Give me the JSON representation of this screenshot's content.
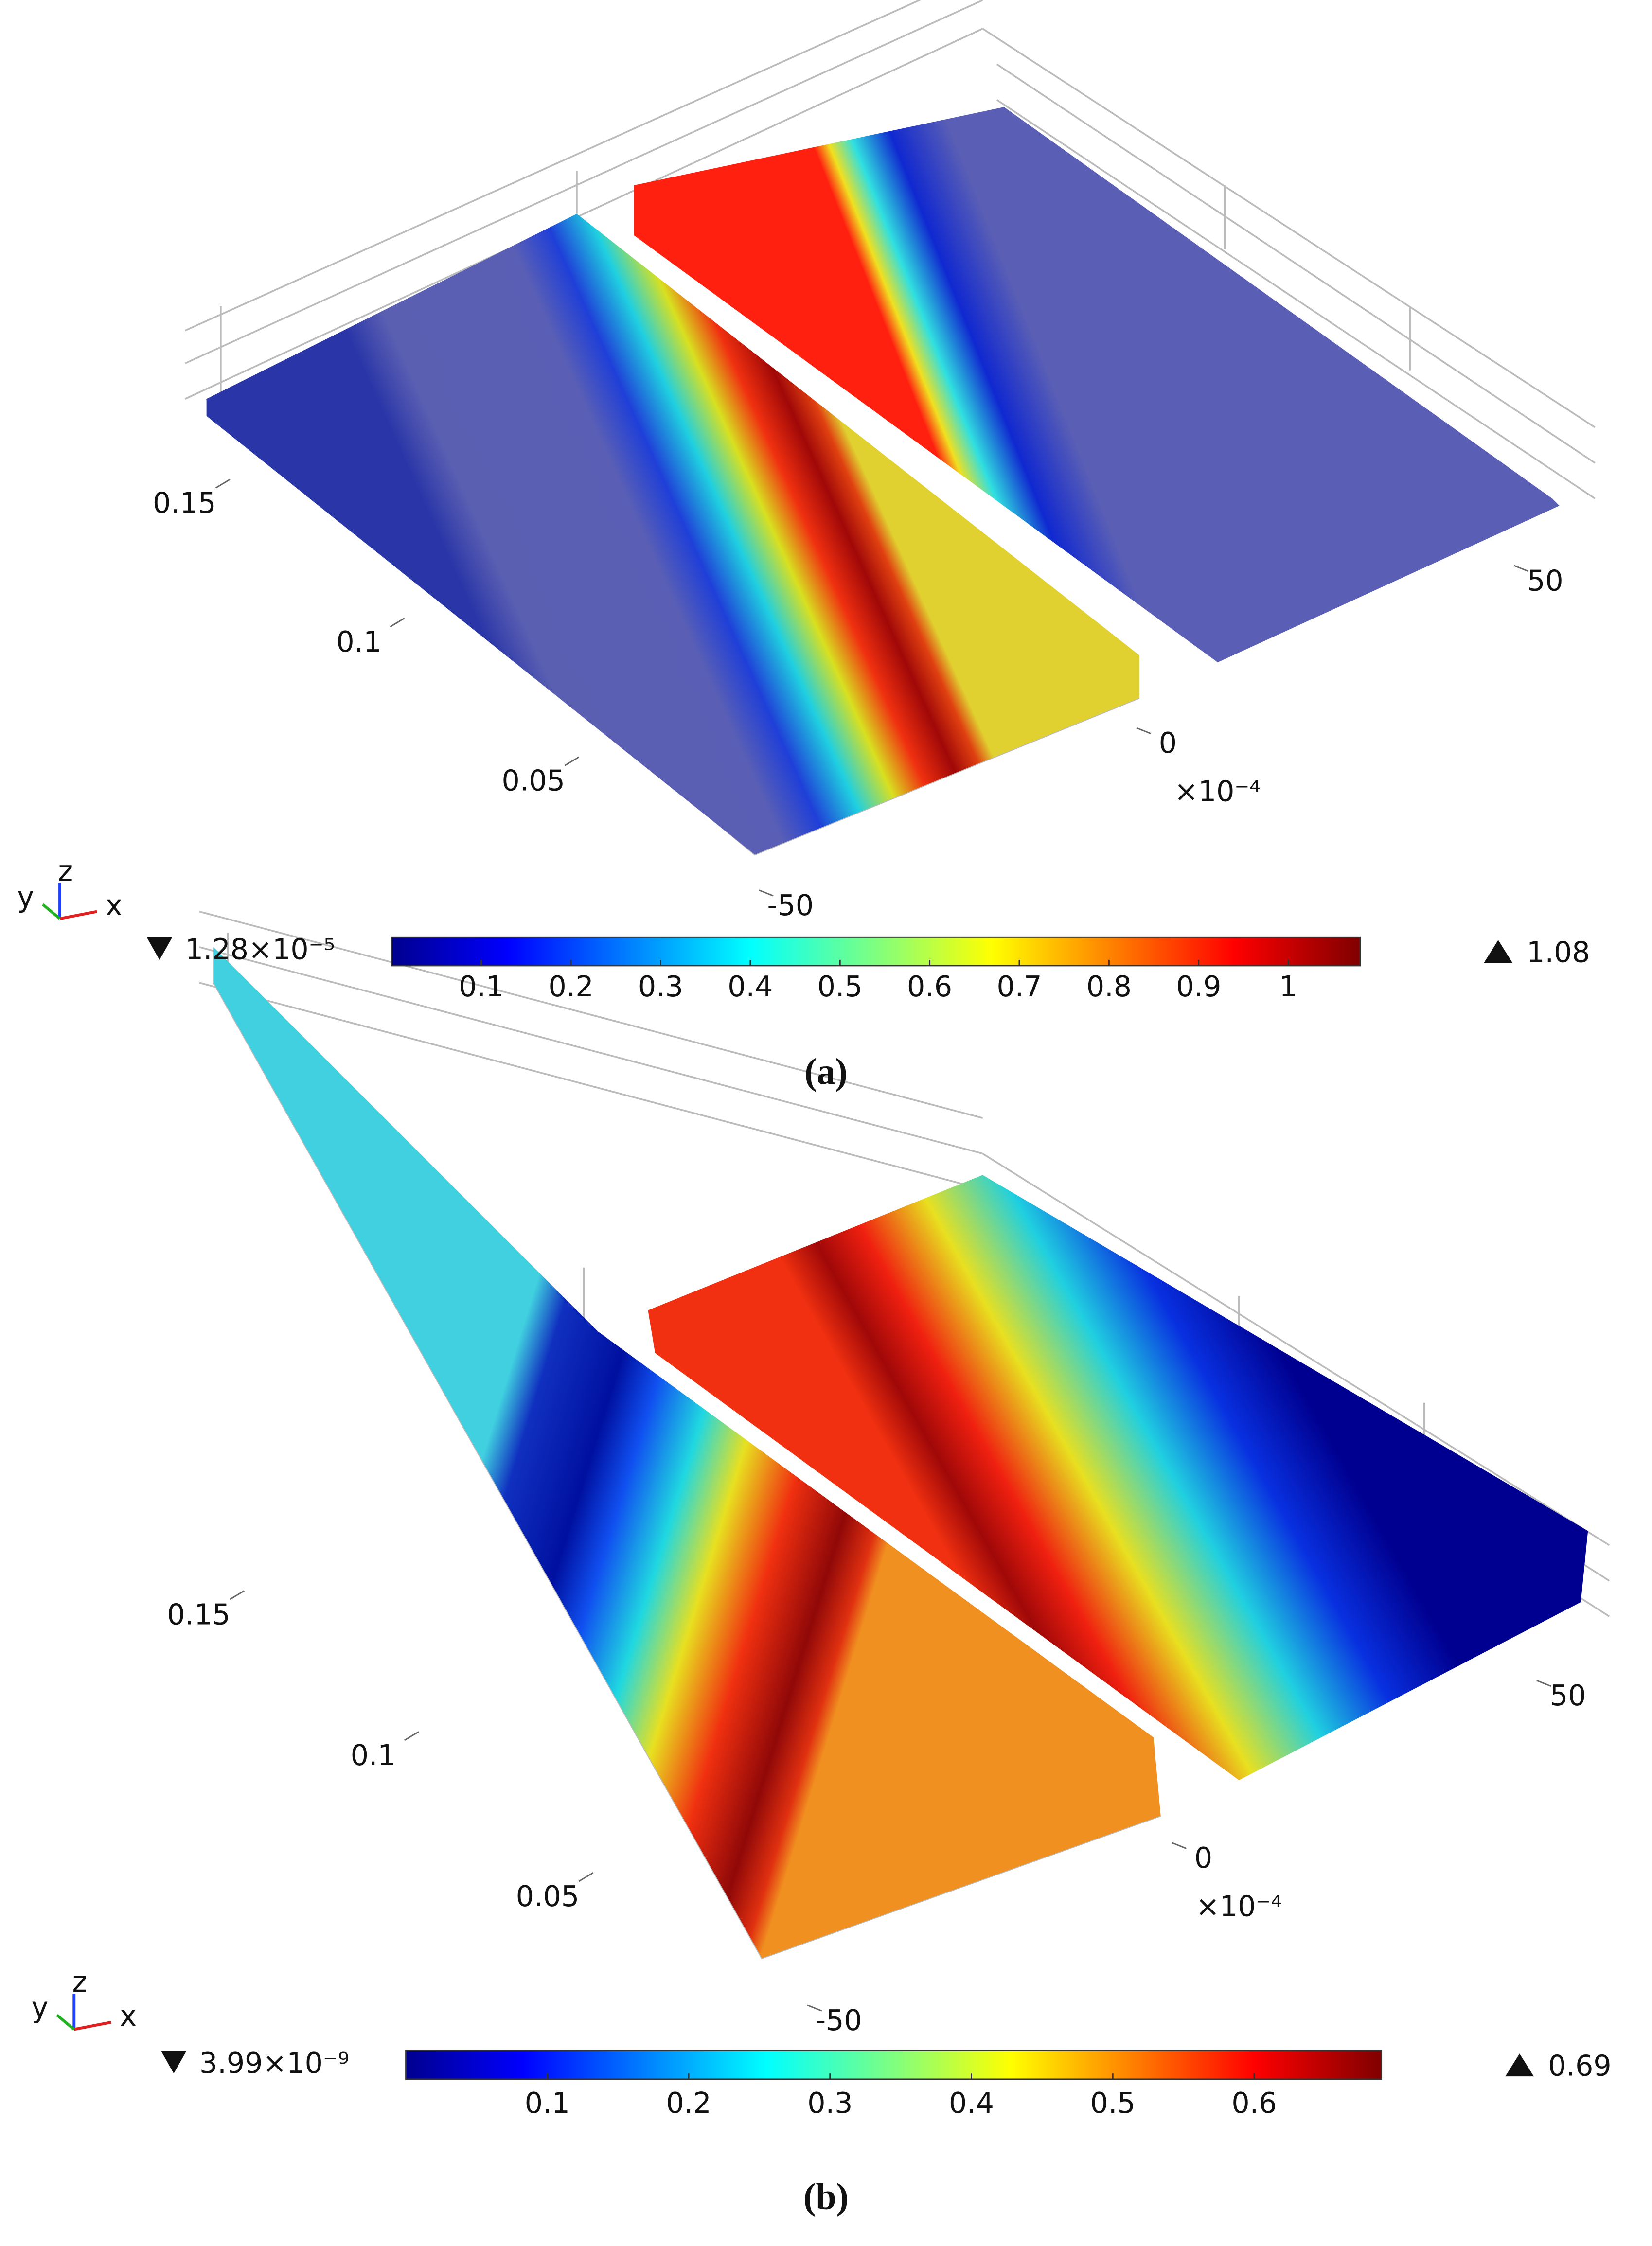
{
  "chart_data": [
    {
      "type": "surface",
      "caption": "(a)",
      "axis_names": {
        "x": "x",
        "y": "y",
        "z": "z"
      },
      "yticks": [
        0.15,
        0.1,
        0.05
      ],
      "xticks": [
        -50,
        0,
        50
      ],
      "x_multiplier": "×10⁻⁴",
      "colorbar": {
        "min": {
          "value": 1.28e-05,
          "label": "1.28×10⁻⁵"
        },
        "max": 1.08,
        "ticks": [
          0.1,
          0.2,
          0.3,
          0.4,
          0.5,
          0.6,
          0.7,
          0.8,
          0.9,
          1
        ]
      }
    },
    {
      "type": "surface",
      "caption": "(b)",
      "axis_names": {
        "x": "x",
        "y": "y",
        "z": "z"
      },
      "yticks": [
        0.15,
        0.1,
        0.05
      ],
      "xticks": [
        -50,
        0,
        50
      ],
      "x_multiplier": "×10⁻⁴",
      "colorbar": {
        "min": {
          "value": 3.99e-09,
          "label": "3.99×10⁻⁹"
        },
        "max": 0.69,
        "ticks": [
          0.1,
          0.2,
          0.3,
          0.4,
          0.5,
          0.6
        ]
      }
    }
  ]
}
